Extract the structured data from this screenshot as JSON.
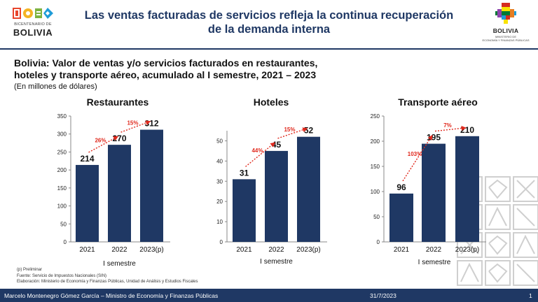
{
  "header": {
    "title_line1": "Las ventas facturadas de servicios refleja la continua recuperación",
    "title_line2": "de la demanda interna",
    "left_logo": {
      "small": "BICENTENARIO DE",
      "big": "BOLIVIA"
    },
    "right_logo": {
      "big": "BOLIVIA",
      "small1": "MINISTERIO DE",
      "small2": "ECONOMÍA Y FINANZAS PÚBLICAS"
    }
  },
  "subtitle": {
    "line1": "Bolivia: Valor de ventas y/o servicios facturados en restaurantes,",
    "line2": "hoteles y transporte aéreo, acumulado al I semestre, 2021 – 2023",
    "units": "(En millones de dólares)"
  },
  "chart_data": [
    {
      "type": "bar",
      "title": "Restaurantes",
      "categories": [
        "2021",
        "2022",
        "2023(p)"
      ],
      "values": [
        214,
        270,
        312
      ],
      "ylim": [
        0,
        350
      ],
      "yticks": [
        0,
        50,
        100,
        150,
        200,
        250,
        300,
        350
      ],
      "growth": [
        "26%",
        "15%"
      ],
      "xlabel": "I semestre",
      "ylabel": ""
    },
    {
      "type": "bar",
      "title": "Hoteles",
      "categories": [
        "2021",
        "2022",
        "2023(p)"
      ],
      "values": [
        31,
        45,
        52
      ],
      "ylim": [
        0,
        55
      ],
      "yticks": [
        0,
        10,
        20,
        30,
        40,
        50
      ],
      "growth": [
        "44%",
        "15%"
      ],
      "xlabel": "I semestre",
      "ylabel": ""
    },
    {
      "type": "bar",
      "title": "Transporte aéreo",
      "categories": [
        "2021",
        "2022",
        "2023(p)"
      ],
      "values": [
        96,
        195,
        210
      ],
      "ylim": [
        0,
        250
      ],
      "yticks": [
        0,
        50,
        100,
        150,
        200,
        250
      ],
      "growth": [
        "103%",
        "7%"
      ],
      "xlabel": "I semestre",
      "ylabel": ""
    }
  ],
  "notes": {
    "line1": "(p) Preliminar",
    "line2": "Fuente: Servicio de Impuestos Nacionales (SIN)",
    "line3": "Elaboración: Ministerio de Economía  y Finanzas Públicas, Unidad de Análisis y Estudios Fiscales"
  },
  "footer": {
    "presenter": "Marcelo Montenegro Gómez García – Ministro de Economía y Finanzas Públicas",
    "date": "31/7/2023",
    "page": "1"
  },
  "colors": {
    "bar": "#1F3864",
    "growth": "#E0281C",
    "title": "#1F3864",
    "footer": "#1F3864"
  }
}
